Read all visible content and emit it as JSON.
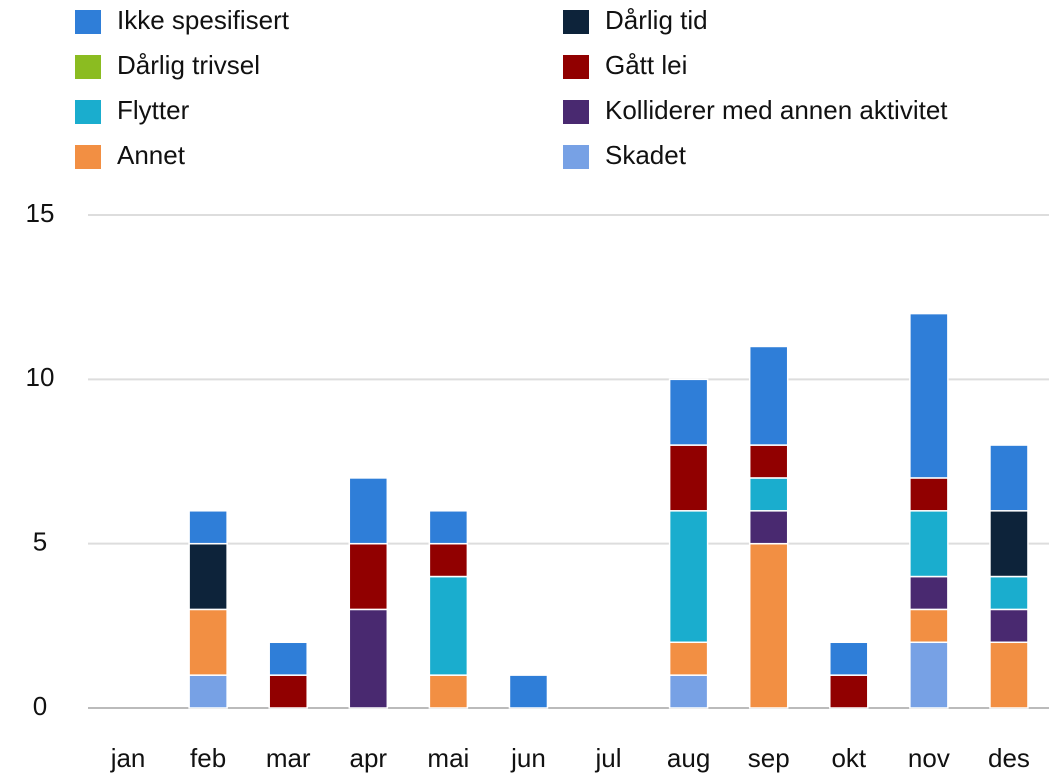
{
  "chart_data": {
    "type": "stacked_bar",
    "categories": [
      "jan",
      "feb",
      "mar",
      "apr",
      "mai",
      "jun",
      "jul",
      "aug",
      "sep",
      "okt",
      "nov",
      "des"
    ],
    "series": [
      {
        "name": "Ikke spesifisert",
        "color": "#2f7ed8",
        "values": [
          0,
          1,
          1,
          2,
          1,
          1,
          0,
          2,
          3,
          1,
          5,
          2
        ]
      },
      {
        "name": "Dårlig tid",
        "color": "#0d233a",
        "values": [
          0,
          2,
          0,
          0,
          0,
          0,
          0,
          0,
          0,
          0,
          0,
          2
        ]
      },
      {
        "name": "Dårlig trivsel",
        "color": "#8bbc21",
        "values": [
          0,
          0,
          0,
          0,
          0,
          0,
          0,
          0,
          0,
          0,
          0,
          0
        ]
      },
      {
        "name": "Gått lei",
        "color": "#910000",
        "values": [
          0,
          0,
          1,
          2,
          1,
          0,
          0,
          2,
          1,
          1,
          1,
          0
        ]
      },
      {
        "name": "Flytter",
        "color": "#1aadce",
        "values": [
          0,
          0,
          0,
          0,
          3,
          0,
          0,
          4,
          1,
          0,
          2,
          1
        ]
      },
      {
        "name": "Kolliderer med annen aktivitet",
        "color": "#492970",
        "values": [
          0,
          0,
          0,
          3,
          0,
          0,
          0,
          0,
          1,
          0,
          1,
          1
        ]
      },
      {
        "name": "Annet",
        "color": "#f28f43",
        "values": [
          0,
          2,
          0,
          0,
          1,
          0,
          0,
          1,
          5,
          0,
          1,
          2
        ]
      },
      {
        "name": "Skadet",
        "color": "#77a1e5",
        "values": [
          0,
          1,
          0,
          0,
          0,
          0,
          0,
          1,
          0,
          0,
          2,
          0
        ]
      }
    ],
    "ylim": [
      0,
      15
    ],
    "yticks": [
      0,
      5,
      10,
      15
    ],
    "grid": true
  }
}
